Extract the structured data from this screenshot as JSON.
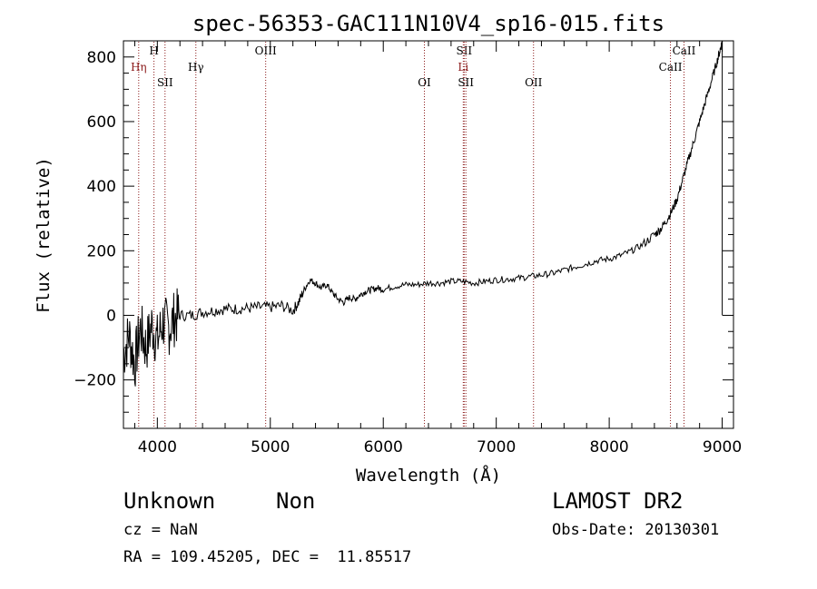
{
  "chart_data": {
    "type": "line",
    "title": "spec-56353-GAC111N10V4_sp16-015.fits",
    "xlabel": "Wavelength (Å)",
    "ylabel": "Flux (relative)",
    "xlim": [
      3700,
      9100
    ],
    "ylim": [
      -350,
      850
    ],
    "xticks": [
      4000,
      5000,
      6000,
      7000,
      8000,
      9000
    ],
    "yticks": [
      -200,
      0,
      200,
      400,
      600,
      800
    ],
    "xtick_labels": [
      "4000",
      "5000",
      "6000",
      "7000",
      "8000",
      "9000"
    ],
    "ytick_labels": [
      "−200",
      "0",
      "200",
      "400",
      "600",
      "800"
    ],
    "grid": false,
    "legend": "none",
    "line_color": "#000000",
    "marker_color": "#8b1a1a",
    "series": [
      {
        "x": [
          3700,
          3750,
          3800,
          3850,
          3900,
          3950,
          4000,
          4050,
          4100,
          4150,
          4200,
          4300,
          4400,
          4500,
          4600,
          4700,
          4800,
          4900,
          5000,
          5100,
          5200,
          5250,
          5300,
          5350,
          5400,
          5450,
          5500,
          5550,
          5600,
          5650,
          5700,
          5750,
          5800,
          5850,
          5900,
          5950,
          6000,
          6100,
          6200,
          6300,
          6400,
          6500,
          6600,
          6700,
          6800,
          6900,
          7000,
          7100,
          7200,
          7300,
          7400,
          7500,
          7600,
          7700,
          7800,
          7900,
          8000,
          8100,
          8200,
          8300,
          8400,
          8450,
          8500,
          8550,
          8600,
          8650,
          8700,
          8750,
          8800,
          8850,
          8900,
          8950,
          8980,
          9000
        ],
        "y": [
          -120,
          -60,
          -150,
          -40,
          -100,
          -30,
          -80,
          -20,
          -40,
          -10,
          0,
          0,
          10,
          15,
          20,
          20,
          22,
          25,
          25,
          30,
          15,
          40,
          80,
          110,
          100,
          85,
          95,
          70,
          50,
          40,
          55,
          50,
          65,
          75,
          80,
          85,
          80,
          90,
          95,
          95,
          100,
          100,
          105,
          105,
          100,
          105,
          110,
          112,
          115,
          120,
          125,
          130,
          140,
          150,
          160,
          170,
          175,
          185,
          200,
          220,
          250,
          265,
          290,
          320,
          360,
          420,
          480,
          540,
          600,
          660,
          720,
          780,
          820,
          850
        ]
      }
    ],
    "lines": [
      {
        "label": "Hη",
        "wavelength": 3835,
        "row": 1,
        "color": "#8b1a1a"
      },
      {
        "label": "H",
        "wavelength": 3970,
        "row": 0,
        "color": "#000000"
      },
      {
        "label": "SII",
        "wavelength": 4068,
        "row": 2,
        "color": "#000000"
      },
      {
        "label": "Hγ",
        "wavelength": 4341,
        "row": 1,
        "color": "#000000"
      },
      {
        "label": "OIII",
        "wavelength": 4959,
        "row": 0,
        "color": "#000000"
      },
      {
        "label": "OI",
        "wavelength": 6364,
        "row": 2,
        "color": "#000000"
      },
      {
        "label": "SII",
        "wavelength": 6716,
        "row": 0,
        "color": "#000000"
      },
      {
        "label": "Li",
        "wavelength": 6708,
        "row": 1,
        "color": "#8b1a1a"
      },
      {
        "label": "SII",
        "wavelength": 6731,
        "row": 2,
        "color": "#000000"
      },
      {
        "label": "OII",
        "wavelength": 7330,
        "row": 2,
        "color": "#000000"
      },
      {
        "label": "CaII",
        "wavelength": 8662,
        "row": 0,
        "color": "#000000"
      },
      {
        "label": "CaII",
        "wavelength": 8542,
        "row": 1,
        "color": "#000000"
      }
    ]
  },
  "info": {
    "class_name": "Unknown",
    "subclass": "Non",
    "survey": "LAMOST DR2",
    "cz": "cz = NaN",
    "obs_date": "Obs-Date: 20130301",
    "coords": "RA = 109.45205, DEC =  11.85517"
  }
}
